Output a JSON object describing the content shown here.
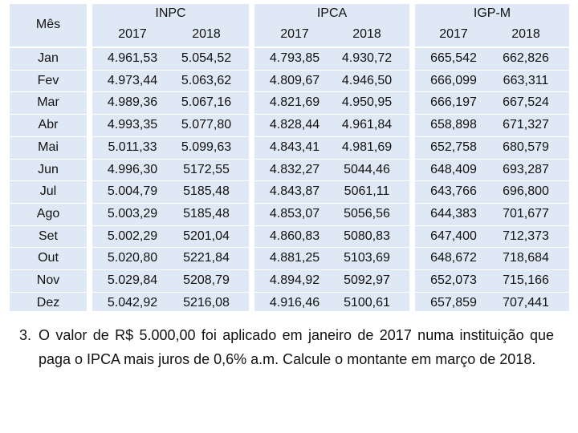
{
  "table": {
    "month_header": "Mês",
    "groups": [
      {
        "name": "INPC",
        "years": [
          "2017",
          "2018"
        ]
      },
      {
        "name": "IPCA",
        "years": [
          "2017",
          "2018"
        ]
      },
      {
        "name": "IGP-M",
        "years": [
          "2017",
          "2018"
        ]
      }
    ],
    "rows": [
      {
        "month": "Jan",
        "values": [
          "4.961,53",
          "5.054,52",
          "4.793,85",
          "4.930,72",
          "665,542",
          "662,826"
        ]
      },
      {
        "month": "Fev",
        "values": [
          "4.973,44",
          "5.063,62",
          "4.809,67",
          "4.946,50",
          "666,099",
          "663,311"
        ]
      },
      {
        "month": "Mar",
        "values": [
          "4.989,36",
          "5.067,16",
          "4.821,69",
          "4.950,95",
          "666,197",
          "667,524"
        ]
      },
      {
        "month": "Abr",
        "values": [
          "4.993,35",
          "5.077,80",
          "4.828,44",
          "4.961,84",
          "658,898",
          "671,327"
        ]
      },
      {
        "month": "Mai",
        "values": [
          "5.011,33",
          "5.099,63",
          "4.843,41",
          "4.981,69",
          "652,758",
          "680,579"
        ]
      },
      {
        "month": "Jun",
        "values": [
          "4.996,30",
          "5172,55",
          "4.832,27",
          "5044,46",
          "648,409",
          "693,287"
        ]
      },
      {
        "month": "Jul",
        "values": [
          "5.004,79",
          "5185,48",
          "4.843,87",
          "5061,11",
          "643,766",
          "696,800"
        ]
      },
      {
        "month": "Ago",
        "values": [
          "5.003,29",
          "5185,48",
          "4.853,07",
          "5056,56",
          "644,383",
          "701,677"
        ]
      },
      {
        "month": "Set",
        "values": [
          "5.002,29",
          "5201,04",
          "4.860,83",
          "5080,83",
          "647,400",
          "712,373"
        ]
      },
      {
        "month": "Out",
        "values": [
          "5.020,80",
          "5221,84",
          "4.881,25",
          "5103,69",
          "648,672",
          "718,684"
        ]
      },
      {
        "month": "Nov",
        "values": [
          "5.029,84",
          "5208,79",
          "4.894,92",
          "5092,97",
          "652,073",
          "715,166"
        ]
      },
      {
        "month": "Dez",
        "values": [
          "5.042,92",
          "5216,08",
          "4.916,46",
          "5100,61",
          "657,859",
          "707,441"
        ]
      }
    ]
  },
  "question": {
    "number": "3.",
    "text": "O valor de R$ 5.000,00 foi aplicado em janeiro de 2017 numa instituição que paga o IPCA mais juros de 0,6% a.m. Calcule o montante em março de 2018."
  },
  "colors": {
    "cell_background": "#dfe8f5",
    "separator": "#ffffff",
    "text": "#111111"
  }
}
